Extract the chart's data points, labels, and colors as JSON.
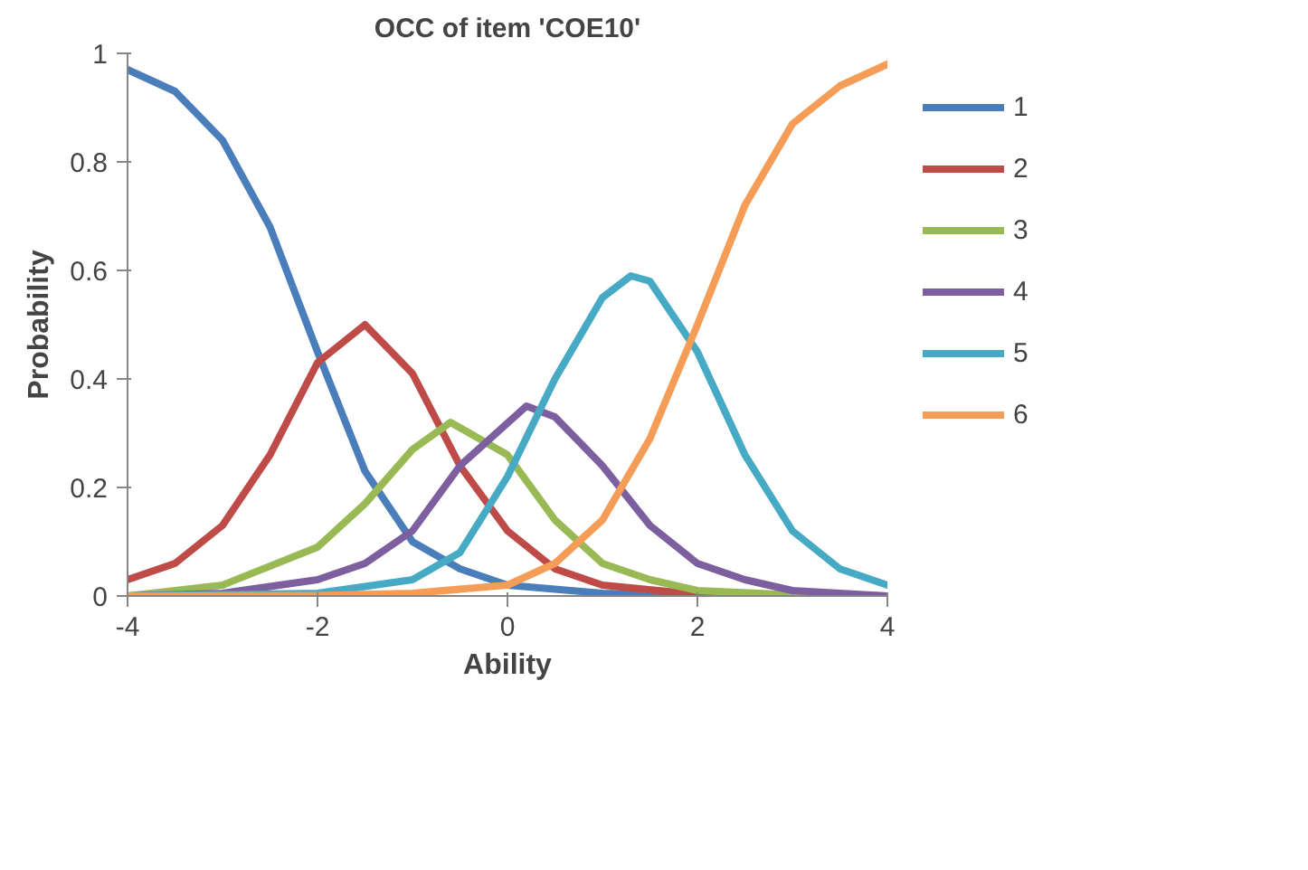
{
  "chart_data": {
    "type": "line",
    "title": "OCC of item 'COE10'",
    "xlabel": "Ability",
    "ylabel": "Probability",
    "xlim": [
      -4,
      4
    ],
    "xticks": [
      -4,
      -2,
      0,
      2,
      4
    ],
    "ylim": [
      0,
      1
    ],
    "yticks": [
      0,
      0.2,
      0.4,
      0.6,
      0.8,
      1
    ],
    "grid": false,
    "legend": "right",
    "marker": "none",
    "line_style": "solid",
    "series": [
      {
        "name": "1",
        "color": "#4a7ebb",
        "x": [
          -4,
          -3.5,
          -3,
          -2.5,
          -2,
          -1.5,
          -1,
          -0.5,
          0,
          1,
          2,
          4
        ],
        "values": [
          0.97,
          0.93,
          0.84,
          0.68,
          0.45,
          0.23,
          0.1,
          0.05,
          0.02,
          0.005,
          0.001,
          0
        ]
      },
      {
        "name": "2",
        "color": "#be4b48",
        "x": [
          -4,
          -3.5,
          -3,
          -2.5,
          -2,
          -1.5,
          -1,
          -0.5,
          0,
          0.5,
          1,
          2,
          4
        ],
        "values": [
          0.03,
          0.06,
          0.13,
          0.26,
          0.43,
          0.5,
          0.41,
          0.24,
          0.12,
          0.05,
          0.02,
          0.003,
          0
        ]
      },
      {
        "name": "3",
        "color": "#98b954",
        "x": [
          -4,
          -3,
          -2,
          -1.5,
          -1,
          -0.6,
          0,
          0.5,
          1,
          1.5,
          2,
          3,
          4
        ],
        "values": [
          0.0,
          0.02,
          0.09,
          0.17,
          0.27,
          0.32,
          0.26,
          0.14,
          0.06,
          0.03,
          0.01,
          0.002,
          0
        ]
      },
      {
        "name": "4",
        "color": "#7d5fa0",
        "x": [
          -4,
          -3,
          -2,
          -1.5,
          -1,
          -0.5,
          0.2,
          0.5,
          1,
          1.5,
          2,
          2.5,
          3,
          4
        ],
        "values": [
          0,
          0.005,
          0.03,
          0.06,
          0.12,
          0.24,
          0.35,
          0.33,
          0.24,
          0.13,
          0.06,
          0.03,
          0.01,
          0
        ]
      },
      {
        "name": "5",
        "color": "#46aac5",
        "x": [
          -4,
          -2,
          -1,
          -0.5,
          0,
          0.5,
          1,
          1.3,
          1.5,
          2,
          2.5,
          3,
          3.5,
          4
        ],
        "values": [
          0,
          0.005,
          0.03,
          0.08,
          0.22,
          0.4,
          0.55,
          0.59,
          0.58,
          0.45,
          0.26,
          0.12,
          0.05,
          0.02
        ]
      },
      {
        "name": "6",
        "color": "#f59d56",
        "x": [
          -4,
          -2,
          -1,
          0,
          0.5,
          1,
          1.5,
          2,
          2.5,
          3,
          3.5,
          4
        ],
        "values": [
          0,
          0.001,
          0.005,
          0.02,
          0.06,
          0.14,
          0.29,
          0.5,
          0.72,
          0.87,
          0.94,
          0.98
        ]
      }
    ]
  }
}
